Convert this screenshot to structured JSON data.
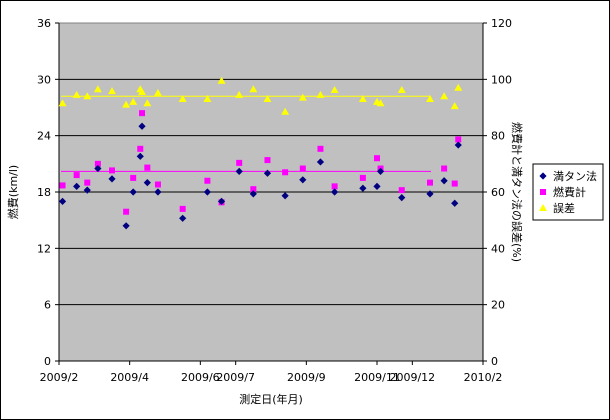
{
  "chart_data": {
    "type": "scatter",
    "xlabel": "測定日(年月)",
    "ylabel_left": "燃費(km/l)",
    "ylabel_right": "燃費計と満タン法の誤差(%)",
    "x_ticks": [
      {
        "value": 0,
        "label": "2009/2"
      },
      {
        "value": 2,
        "label": "2009/4"
      },
      {
        "value": 4,
        "label": "2009/6"
      },
      {
        "value": 5,
        "label": "2009/7"
      },
      {
        "value": 7,
        "label": "2009/9"
      },
      {
        "value": 9,
        "label": "2009/11"
      },
      {
        "value": 10,
        "label": "2009/12"
      },
      {
        "value": 12,
        "label": "2010/2"
      }
    ],
    "xlim": [
      0,
      12
    ],
    "ylim_left": [
      0,
      36
    ],
    "y_ticks_left": [
      "0",
      "6",
      "12",
      "18",
      "24",
      "30",
      "36"
    ],
    "ylim_right": [
      0,
      120
    ],
    "y_ticks_right": [
      "0",
      "20",
      "40",
      "60",
      "80",
      "100",
      "120"
    ],
    "grid": true,
    "plot_background": "#c0c0c0",
    "legend_position": "right",
    "series": [
      {
        "name": "満タン法",
        "marker": "diamond",
        "color": "#000080",
        "axis": "left",
        "x": [
          0.1,
          0.5,
          0.8,
          1.1,
          1.5,
          1.9,
          2.1,
          2.3,
          2.35,
          2.5,
          2.8,
          3.5,
          4.2,
          4.6,
          5.1,
          5.5,
          5.9,
          6.4,
          6.9,
          7.4,
          7.8,
          8.6,
          9.0,
          9.1,
          9.7,
          10.5,
          10.9,
          11.2,
          11.3
        ],
        "y": [
          17.0,
          18.6,
          18.2,
          20.5,
          19.4,
          14.4,
          18.0,
          21.8,
          25.0,
          19.0,
          18.0,
          15.2,
          18.0,
          17.0,
          20.2,
          17.8,
          20.0,
          17.6,
          19.3,
          21.2,
          18.0,
          18.4,
          18.6,
          20.2,
          17.4,
          17.8,
          19.2,
          16.8,
          23.0
        ]
      },
      {
        "name": "燃費計",
        "marker": "square",
        "color": "#ff00ff",
        "axis": "left",
        "x": [
          0.1,
          0.5,
          0.8,
          1.1,
          1.5,
          1.9,
          2.1,
          2.3,
          2.35,
          2.5,
          2.8,
          3.5,
          4.2,
          4.6,
          5.1,
          5.5,
          5.9,
          6.4,
          6.9,
          7.4,
          7.8,
          8.6,
          9.0,
          9.1,
          9.7,
          10.5,
          10.9,
          11.2,
          11.3
        ],
        "y": [
          18.7,
          19.8,
          19.0,
          21.0,
          20.3,
          15.9,
          19.5,
          22.6,
          26.4,
          20.6,
          18.8,
          16.2,
          19.2,
          16.9,
          21.1,
          18.3,
          21.4,
          20.1,
          20.5,
          22.6,
          18.6,
          19.5,
          21.6,
          20.5,
          18.2,
          19.0,
          20.5,
          18.9,
          23.6
        ]
      },
      {
        "name": "誤差",
        "marker": "triangle",
        "color": "#ffff00",
        "axis": "right",
        "x": [
          0.1,
          0.5,
          0.8,
          1.1,
          1.5,
          1.9,
          2.1,
          2.3,
          2.35,
          2.5,
          2.8,
          3.5,
          4.2,
          4.6,
          5.1,
          5.5,
          5.9,
          6.4,
          6.9,
          7.4,
          7.8,
          8.6,
          9.0,
          9.1,
          9.7,
          10.5,
          10.9,
          11.2,
          11.3
        ],
        "y": [
          91.5,
          94.5,
          94.0,
          96.5,
          95.8,
          91.0,
          92.0,
          96.5,
          95.5,
          91.5,
          95.2,
          93.0,
          93.0,
          99.5,
          94.5,
          96.5,
          93.0,
          88.5,
          93.5,
          94.5,
          96.2,
          93.0,
          92.0,
          91.5,
          96.2,
          93.0,
          94.0,
          90.5,
          97.0
        ]
      }
    ],
    "reference_lines": [
      {
        "axis": "left",
        "value": 20.2,
        "color": "#ff00ff"
      },
      {
        "axis": "right",
        "value": 94.0,
        "color": "#ffff00"
      }
    ]
  }
}
